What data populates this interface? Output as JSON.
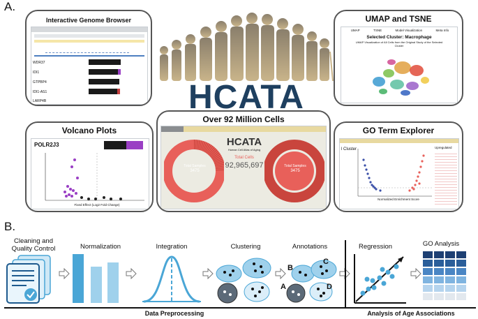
{
  "panel_a_label": "A.",
  "panel_b_label": "B.",
  "center": {
    "title": "HCATA",
    "card_title": "Over 92 Million Cells",
    "mini_title": "HCATA",
    "mini_subtitle": "Human Cell Atlas of Aging",
    "total_cells_label": "Total Cells",
    "total_cells_value": "92,965,697",
    "total_samples_label_left": "Total Samples",
    "total_samples_value_left": "3475",
    "total_samples_label_right": "Total Samples",
    "total_samples_value_right": "3475"
  },
  "cards": {
    "genome_browser": {
      "title": "Interactive Genome Browser",
      "genes": [
        "WDR37",
        "IDI1",
        "GTPBP4",
        "IDI1-AS1",
        "LARP4B"
      ]
    },
    "umap": {
      "title": "UMAP and TSNE",
      "tabs": [
        "UMAP",
        "TSNE",
        "Model Visualization",
        "Meta Info"
      ],
      "selected": "Selected Cluster: Macrophage",
      "caption": "UMAP Visualization of All Cells from the Original Study of the Selected Cluster"
    },
    "volcano": {
      "title": "Volcano Plots",
      "gene": "POLR2J3",
      "xlabel": "Fixed Effect (Log2 Fold Change)",
      "ylabel": "-log10(adj.P-value)"
    },
    "go_term": {
      "title": "GO Term Explorer",
      "side_label": "l Cluster",
      "xlabel": "Normalized Enrichment Score",
      "ylabel": "-log10(p-value)",
      "right_header": "Upregulated"
    }
  },
  "pipeline": {
    "stages": [
      {
        "label": "Cleaning and\nQuality Control"
      },
      {
        "label": "Normalization"
      },
      {
        "label": "Integration"
      },
      {
        "label": "Clustering"
      },
      {
        "label": "Annotations"
      },
      {
        "label": "Regression"
      },
      {
        "label": "GO Analysis"
      }
    ],
    "annotation_letters": [
      "A",
      "B",
      "C",
      "D"
    ],
    "footer_left": "Data Preprocessing",
    "footer_right": "Analysis of Age Associations"
  },
  "colors": {
    "navy": "#1e3f5f",
    "salmon": "#e8605a",
    "light_blue": "#9fd1ec",
    "mid_blue": "#4aa6d6",
    "dark_blue": "#1d5a8e",
    "purple": "#9a3fc4",
    "tan": "#b9a37a"
  }
}
